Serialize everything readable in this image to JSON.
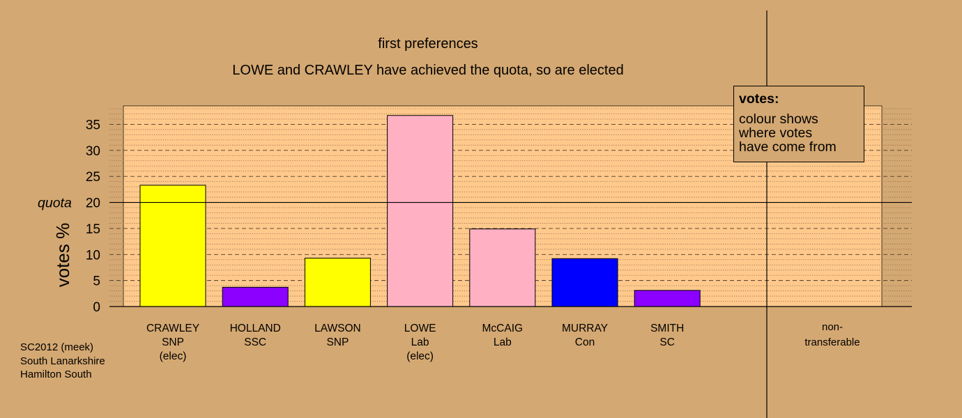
{
  "chart_data": {
    "type": "bar",
    "title": "first preferences",
    "subtitle": "LOWE and CRAWLEY have achieved the quota, so are elected",
    "ylabel": "votes %",
    "ylim": [
      0,
      38.5
    ],
    "yticks": [
      0,
      5,
      10,
      15,
      20,
      25,
      30,
      35
    ],
    "quota": {
      "label": "quota",
      "value": 20
    },
    "bars": [
      {
        "name": "CRAWLEY",
        "party": "SNP",
        "status": "(elec)",
        "value": 23.3,
        "color": "#ffff00"
      },
      {
        "name": "HOLLAND",
        "party": "SSC",
        "status": "",
        "value": 3.7,
        "color": "#8b00ff"
      },
      {
        "name": "LAWSON",
        "party": "SNP",
        "status": "",
        "value": 9.3,
        "color": "#ffff00"
      },
      {
        "name": "LOWE",
        "party": "Lab",
        "status": "(elec)",
        "value": 36.7,
        "color": "#ffb0c3"
      },
      {
        "name": "McCAIG",
        "party": "Lab",
        "status": "",
        "value": 14.9,
        "color": "#ffb0c3"
      },
      {
        "name": "MURRAY",
        "party": "Con",
        "status": "",
        "value": 9.2,
        "color": "#0000ff"
      },
      {
        "name": "SMITH",
        "party": "SC",
        "status": "",
        "value": 3.1,
        "color": "#8b00ff"
      }
    ],
    "nontransferable": {
      "label_line1": "non-",
      "label_line2": "transferable",
      "value": 0
    },
    "legend": {
      "title": "votes:",
      "lines": [
        "colour shows",
        "where votes",
        "have come from"
      ],
      "placement": "top-right"
    },
    "grid": true,
    "colors": {
      "background": "#d4a872",
      "plot_area": "#ffc98c"
    }
  },
  "footer": {
    "line1": "SC2012 (meek)",
    "line2": "South Lanarkshire",
    "line3": "Hamilton South"
  }
}
